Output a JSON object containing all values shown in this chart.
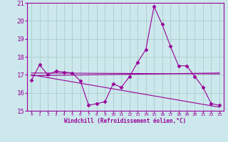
{
  "xlabel": "Windchill (Refroidissement éolien,°C)",
  "background_color": "#cce8ec",
  "line_color": "#990099",
  "grid_color": "#aacccc",
  "xlim": [
    -0.5,
    23.5
  ],
  "ylim": [
    15,
    21
  ],
  "yticks": [
    15,
    16,
    17,
    18,
    19,
    20,
    21
  ],
  "xticks": [
    0,
    1,
    2,
    3,
    4,
    5,
    6,
    7,
    8,
    9,
    10,
    11,
    12,
    13,
    14,
    15,
    16,
    17,
    18,
    19,
    20,
    21,
    22,
    23
  ],
  "series": [
    {
      "x": [
        0,
        1,
        2,
        3,
        4,
        5,
        6,
        7,
        8,
        9,
        10,
        11,
        12,
        13,
        14,
        15,
        16,
        17,
        18,
        19,
        20,
        21,
        22,
        23
      ],
      "y": [
        16.7,
        17.55,
        17.0,
        17.2,
        17.15,
        17.1,
        16.65,
        15.3,
        15.4,
        15.5,
        16.5,
        16.3,
        16.9,
        17.7,
        18.4,
        20.8,
        19.8,
        18.6,
        17.5,
        17.5,
        16.9,
        16.3,
        15.4,
        15.3
      ],
      "markers": true
    },
    {
      "x": [
        0,
        23
      ],
      "y": [
        17.1,
        17.05
      ],
      "markers": false
    },
    {
      "x": [
        0,
        23
      ],
      "y": [
        16.95,
        17.1
      ],
      "markers": false
    },
    {
      "x": [
        0,
        23
      ],
      "y": [
        17.0,
        15.2
      ],
      "markers": false
    }
  ]
}
